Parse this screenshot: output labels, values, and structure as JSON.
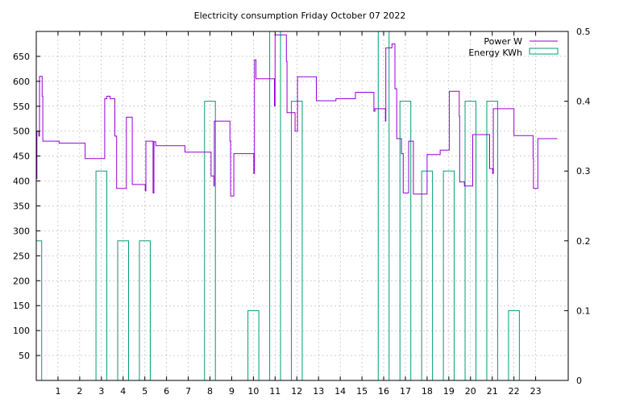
{
  "chart_data": {
    "type": "line",
    "title": "Electricity consumption Friday October 07 2022",
    "x_axis": {
      "ticks": [
        "1",
        "2",
        "3",
        "4",
        "5",
        "6",
        "7",
        "8",
        "9",
        "10",
        "11",
        "12",
        "13",
        "14",
        "15",
        "16",
        "17",
        "18",
        "19",
        "20",
        "21",
        "22",
        "23"
      ],
      "range": [
        0,
        24.5
      ]
    },
    "y_axis_left": {
      "ticks": [
        "50",
        "100",
        "150",
        "200",
        "250",
        "300",
        "350",
        "400",
        "450",
        "500",
        "550",
        "600",
        "650"
      ],
      "range": [
        0,
        700
      ]
    },
    "y_axis_right": {
      "ticks": [
        "0",
        "0.1",
        "0.2",
        "0.3",
        "0.4",
        "0.5"
      ],
      "range": [
        0,
        0.5
      ]
    },
    "grid": true,
    "legend_position": "top-right",
    "series": [
      {
        "name": "Power W",
        "kind": "step-line",
        "axis": "left",
        "color": "#9400d3",
        "points": [
          [
            0.0,
            405
          ],
          [
            0.03,
            500
          ],
          [
            0.1,
            500
          ],
          [
            0.12,
            490
          ],
          [
            0.15,
            610
          ],
          [
            0.25,
            610
          ],
          [
            0.27,
            570
          ],
          [
            0.3,
            480
          ],
          [
            1.0,
            480
          ],
          [
            1.05,
            476
          ],
          [
            2.2,
            476
          ],
          [
            2.25,
            445
          ],
          [
            3.1,
            445
          ],
          [
            3.15,
            565
          ],
          [
            3.25,
            570
          ],
          [
            3.35,
            570
          ],
          [
            3.4,
            565
          ],
          [
            3.6,
            565
          ],
          [
            3.62,
            490
          ],
          [
            3.7,
            385
          ],
          [
            4.1,
            385
          ],
          [
            4.15,
            528
          ],
          [
            4.4,
            528
          ],
          [
            4.42,
            393
          ],
          [
            5.0,
            393
          ],
          [
            5.02,
            380
          ],
          [
            5.05,
            480
          ],
          [
            5.35,
            480
          ],
          [
            5.38,
            376
          ],
          [
            5.42,
            479
          ],
          [
            5.5,
            471
          ],
          [
            6.8,
            471
          ],
          [
            6.85,
            458
          ],
          [
            8.0,
            458
          ],
          [
            8.05,
            410
          ],
          [
            8.15,
            410
          ],
          [
            8.18,
            390
          ],
          [
            8.2,
            520
          ],
          [
            8.9,
            520
          ],
          [
            8.92,
            480
          ],
          [
            8.95,
            370
          ],
          [
            9.05,
            370
          ],
          [
            9.1,
            455
          ],
          [
            10.0,
            455
          ],
          [
            10.02,
            415
          ],
          [
            10.05,
            643
          ],
          [
            10.12,
            605
          ],
          [
            10.95,
            605
          ],
          [
            10.97,
            550
          ],
          [
            11.0,
            693
          ],
          [
            11.5,
            693
          ],
          [
            11.52,
            640
          ],
          [
            11.55,
            537
          ],
          [
            11.9,
            537
          ],
          [
            11.92,
            500
          ],
          [
            12.0,
            500
          ],
          [
            12.03,
            609
          ],
          [
            12.85,
            609
          ],
          [
            12.9,
            561
          ],
          [
            13.75,
            561
          ],
          [
            13.8,
            565
          ],
          [
            14.65,
            565
          ],
          [
            14.7,
            578
          ],
          [
            15.5,
            578
          ],
          [
            15.55,
            540
          ],
          [
            15.6,
            545
          ],
          [
            16.05,
            545
          ],
          [
            16.08,
            520
          ],
          [
            16.1,
            667
          ],
          [
            16.35,
            667
          ],
          [
            16.38,
            675
          ],
          [
            16.5,
            675
          ],
          [
            16.52,
            585
          ],
          [
            16.6,
            485
          ],
          [
            16.8,
            485
          ],
          [
            16.82,
            455
          ],
          [
            16.9,
            376
          ],
          [
            17.1,
            376
          ],
          [
            17.15,
            480
          ],
          [
            17.35,
            480
          ],
          [
            17.37,
            374
          ],
          [
            17.95,
            374
          ],
          [
            18.0,
            453
          ],
          [
            18.55,
            453
          ],
          [
            18.6,
            462
          ],
          [
            19.0,
            462
          ],
          [
            19.02,
            580
          ],
          [
            19.45,
            580
          ],
          [
            19.48,
            530
          ],
          [
            19.5,
            398
          ],
          [
            19.7,
            398
          ],
          [
            19.72,
            390
          ],
          [
            20.05,
            390
          ],
          [
            20.1,
            493
          ],
          [
            20.85,
            493
          ],
          [
            20.88,
            425
          ],
          [
            21.0,
            425
          ],
          [
            21.02,
            415
          ],
          [
            21.05,
            545
          ],
          [
            21.95,
            545
          ],
          [
            22.0,
            491
          ],
          [
            22.85,
            491
          ],
          [
            22.88,
            445
          ],
          [
            22.9,
            385
          ],
          [
            23.05,
            385
          ],
          [
            23.1,
            485
          ],
          [
            24.0,
            485
          ]
        ]
      },
      {
        "name": "Energy KWh",
        "kind": "histeps",
        "axis": "right",
        "color": "#009e73",
        "hours": [
          0,
          1,
          2,
          3,
          4,
          5,
          6,
          7,
          8,
          9,
          10,
          11,
          12,
          13,
          14,
          15,
          16,
          17,
          18,
          19,
          20,
          21,
          22,
          23
        ],
        "values": [
          0.2,
          0,
          0,
          0.3,
          0.2,
          0.2,
          0,
          0,
          0.4,
          0,
          0.1,
          0.5,
          0.4,
          0,
          0,
          0,
          0.5,
          0.4,
          0.3,
          0.3,
          0.4,
          0.4,
          0.1,
          0
        ]
      }
    ]
  }
}
